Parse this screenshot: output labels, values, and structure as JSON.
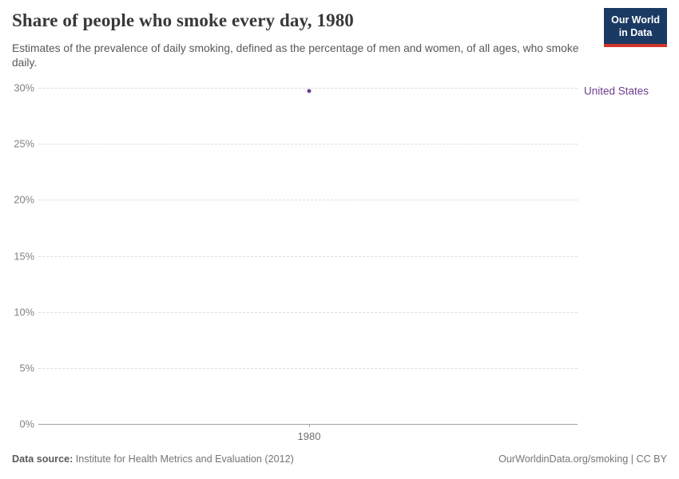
{
  "header": {
    "title": "Share of people who smoke every day, 1980",
    "subtitle": "Estimates of the prevalence of daily smoking, defined as the percentage of men and women, of all ages, who smoke daily.",
    "logo": {
      "line1": "Our World",
      "line2": "in Data",
      "bg_color": "#1a3a63",
      "stripe_color": "#d0342c"
    }
  },
  "chart_data": {
    "type": "scatter",
    "title": "Share of people who smoke every day, 1980",
    "x": [
      1980
    ],
    "series": [
      {
        "name": "United States",
        "values": [
          29.7
        ],
        "color": "#6d3e91"
      }
    ],
    "xlabel": "",
    "ylabel": "",
    "ylim": [
      0,
      30
    ],
    "y_ticks": [
      {
        "value": 30,
        "label": "30%"
      },
      {
        "value": 25,
        "label": "25%"
      },
      {
        "value": 20,
        "label": "20%"
      },
      {
        "value": 15,
        "label": "15%"
      },
      {
        "value": 10,
        "label": "10%"
      },
      {
        "value": 5,
        "label": "5%"
      },
      {
        "value": 0,
        "label": "0%"
      }
    ],
    "x_ticks": [
      {
        "value": 1980,
        "label": "1980"
      }
    ],
    "grid": "horizontal-dashed",
    "legend_position": "right-of-plot",
    "entity_label": "United States",
    "entity_color": "#6d3e91"
  },
  "footer": {
    "source_label": "Data source:",
    "source_text": "Institute for Health Metrics and Evaluation (2012)",
    "credit": "OurWorldinData.org/smoking | CC BY"
  }
}
